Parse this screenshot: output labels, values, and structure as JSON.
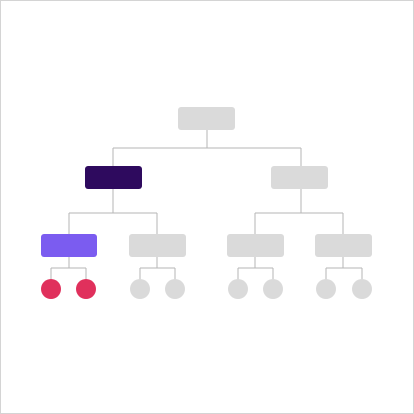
{
  "colors": {
    "border": "#d4d4d4",
    "connector": "#b5b5b5",
    "node_inactive": "#dadada",
    "node_dark": "#2e0a5e",
    "node_selected": "#7b5cf0",
    "leaf_active": "#e0305c"
  },
  "tree": {
    "root": {
      "state": "inactive"
    },
    "level1": [
      {
        "id": "l1-left",
        "state": "dark"
      },
      {
        "id": "l1-right",
        "state": "inactive"
      }
    ],
    "level2": [
      {
        "id": "l2-a",
        "state": "selected"
      },
      {
        "id": "l2-b",
        "state": "inactive"
      },
      {
        "id": "l2-c",
        "state": "inactive"
      },
      {
        "id": "l2-d",
        "state": "inactive"
      }
    ],
    "leaves": [
      {
        "id": "leaf-a1",
        "state": "active"
      },
      {
        "id": "leaf-a2",
        "state": "active"
      },
      {
        "id": "leaf-b1",
        "state": "inactive"
      },
      {
        "id": "leaf-b2",
        "state": "inactive"
      },
      {
        "id": "leaf-c1",
        "state": "inactive"
      },
      {
        "id": "leaf-c2",
        "state": "inactive"
      },
      {
        "id": "leaf-d1",
        "state": "inactive"
      },
      {
        "id": "leaf-d2",
        "state": "inactive"
      }
    ]
  }
}
